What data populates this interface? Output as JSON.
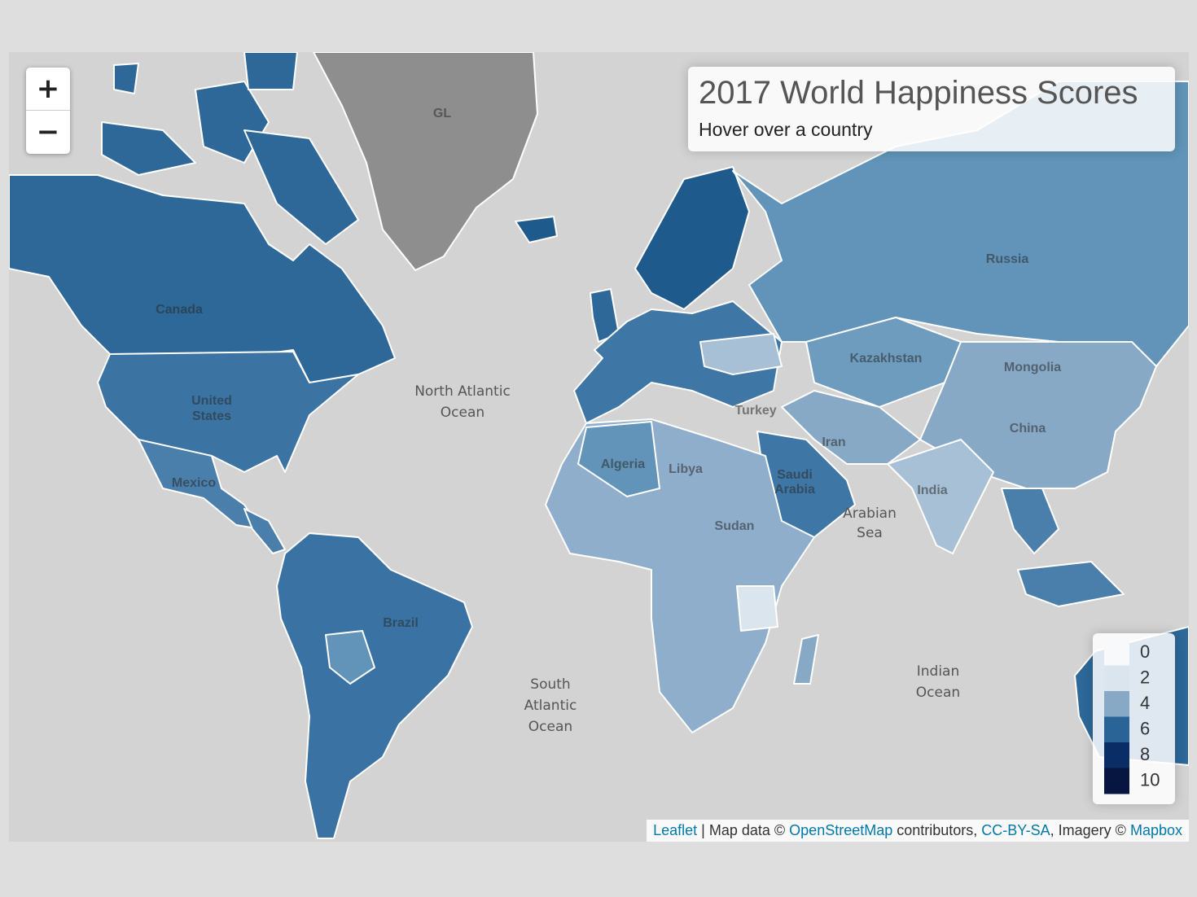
{
  "controls": {
    "zoom_in": "+",
    "zoom_out": "−"
  },
  "info": {
    "title": "2017 World Happiness Scores",
    "subtitle": "Hover over a country"
  },
  "legend": {
    "items": [
      {
        "label": 0,
        "color": "#f7f9fb"
      },
      {
        "label": 2,
        "color": "#dbe5ee"
      },
      {
        "label": 4,
        "color": "#87a9c6"
      },
      {
        "label": 6,
        "color": "#2a6496"
      },
      {
        "label": 8,
        "color": "#0a2d66"
      },
      {
        "label": 10,
        "color": "#061640"
      }
    ]
  },
  "map_labels": [
    "Canada",
    "United",
    "States",
    "Mexico",
    "North Atlantic",
    "Ocean",
    "South",
    "Atlantic",
    "Ocean",
    "Brazil",
    "Russia",
    "Kazakhstan",
    "Mongolia",
    "China",
    "India",
    "Iran",
    "Algeria",
    "Libya",
    "Indian",
    "Ocean",
    "Arabian",
    "Sea",
    "GL",
    "Turkey",
    "Sudan",
    "Saudi",
    "Arabia"
  ],
  "attribution": {
    "leaflet": "Leaflet",
    "sep1": " | Map data © ",
    "osm": "OpenStreetMap",
    "sep2": " contributors, ",
    "license": "CC-BY-SA",
    "sep3": ", Imagery © ",
    "mapbox": "Mapbox"
  }
}
